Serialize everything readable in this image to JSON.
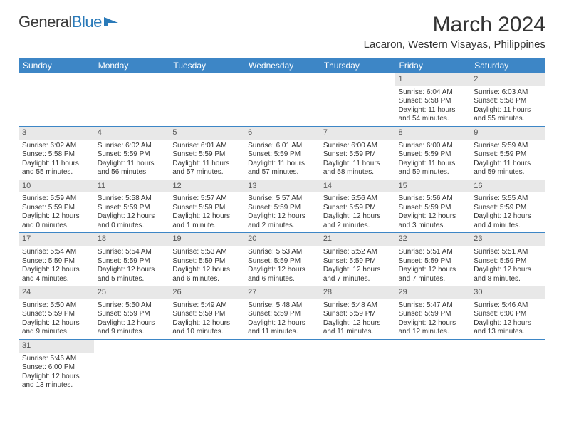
{
  "brand": {
    "part1": "General",
    "part2": "Blue"
  },
  "title": "March 2024",
  "location": "Lacaron, Western Visayas, Philippines",
  "style": {
    "header_bg": "#3d86c6",
    "header_fg": "#ffffff",
    "daynum_bg": "#e8e8e8",
    "row_border": "#3d86c6",
    "page_bg": "#ffffff",
    "text_color": "#333333",
    "title_fontsize": 30,
    "location_fontsize": 15,
    "dayheader_fontsize": 12,
    "cell_fontsize": 10
  },
  "calendar": {
    "columns": [
      "Sunday",
      "Monday",
      "Tuesday",
      "Wednesday",
      "Thursday",
      "Friday",
      "Saturday"
    ],
    "weeks": [
      [
        null,
        null,
        null,
        null,
        null,
        {
          "n": "1",
          "sr": "Sunrise: 6:04 AM",
          "ss": "Sunset: 5:58 PM",
          "dl": "Daylight: 11 hours and 54 minutes."
        },
        {
          "n": "2",
          "sr": "Sunrise: 6:03 AM",
          "ss": "Sunset: 5:58 PM",
          "dl": "Daylight: 11 hours and 55 minutes."
        }
      ],
      [
        {
          "n": "3",
          "sr": "Sunrise: 6:02 AM",
          "ss": "Sunset: 5:58 PM",
          "dl": "Daylight: 11 hours and 55 minutes."
        },
        {
          "n": "4",
          "sr": "Sunrise: 6:02 AM",
          "ss": "Sunset: 5:59 PM",
          "dl": "Daylight: 11 hours and 56 minutes."
        },
        {
          "n": "5",
          "sr": "Sunrise: 6:01 AM",
          "ss": "Sunset: 5:59 PM",
          "dl": "Daylight: 11 hours and 57 minutes."
        },
        {
          "n": "6",
          "sr": "Sunrise: 6:01 AM",
          "ss": "Sunset: 5:59 PM",
          "dl": "Daylight: 11 hours and 57 minutes."
        },
        {
          "n": "7",
          "sr": "Sunrise: 6:00 AM",
          "ss": "Sunset: 5:59 PM",
          "dl": "Daylight: 11 hours and 58 minutes."
        },
        {
          "n": "8",
          "sr": "Sunrise: 6:00 AM",
          "ss": "Sunset: 5:59 PM",
          "dl": "Daylight: 11 hours and 59 minutes."
        },
        {
          "n": "9",
          "sr": "Sunrise: 5:59 AM",
          "ss": "Sunset: 5:59 PM",
          "dl": "Daylight: 11 hours and 59 minutes."
        }
      ],
      [
        {
          "n": "10",
          "sr": "Sunrise: 5:59 AM",
          "ss": "Sunset: 5:59 PM",
          "dl": "Daylight: 12 hours and 0 minutes."
        },
        {
          "n": "11",
          "sr": "Sunrise: 5:58 AM",
          "ss": "Sunset: 5:59 PM",
          "dl": "Daylight: 12 hours and 0 minutes."
        },
        {
          "n": "12",
          "sr": "Sunrise: 5:57 AM",
          "ss": "Sunset: 5:59 PM",
          "dl": "Daylight: 12 hours and 1 minute."
        },
        {
          "n": "13",
          "sr": "Sunrise: 5:57 AM",
          "ss": "Sunset: 5:59 PM",
          "dl": "Daylight: 12 hours and 2 minutes."
        },
        {
          "n": "14",
          "sr": "Sunrise: 5:56 AM",
          "ss": "Sunset: 5:59 PM",
          "dl": "Daylight: 12 hours and 2 minutes."
        },
        {
          "n": "15",
          "sr": "Sunrise: 5:56 AM",
          "ss": "Sunset: 5:59 PM",
          "dl": "Daylight: 12 hours and 3 minutes."
        },
        {
          "n": "16",
          "sr": "Sunrise: 5:55 AM",
          "ss": "Sunset: 5:59 PM",
          "dl": "Daylight: 12 hours and 4 minutes."
        }
      ],
      [
        {
          "n": "17",
          "sr": "Sunrise: 5:54 AM",
          "ss": "Sunset: 5:59 PM",
          "dl": "Daylight: 12 hours and 4 minutes."
        },
        {
          "n": "18",
          "sr": "Sunrise: 5:54 AM",
          "ss": "Sunset: 5:59 PM",
          "dl": "Daylight: 12 hours and 5 minutes."
        },
        {
          "n": "19",
          "sr": "Sunrise: 5:53 AM",
          "ss": "Sunset: 5:59 PM",
          "dl": "Daylight: 12 hours and 6 minutes."
        },
        {
          "n": "20",
          "sr": "Sunrise: 5:53 AM",
          "ss": "Sunset: 5:59 PM",
          "dl": "Daylight: 12 hours and 6 minutes."
        },
        {
          "n": "21",
          "sr": "Sunrise: 5:52 AM",
          "ss": "Sunset: 5:59 PM",
          "dl": "Daylight: 12 hours and 7 minutes."
        },
        {
          "n": "22",
          "sr": "Sunrise: 5:51 AM",
          "ss": "Sunset: 5:59 PM",
          "dl": "Daylight: 12 hours and 7 minutes."
        },
        {
          "n": "23",
          "sr": "Sunrise: 5:51 AM",
          "ss": "Sunset: 5:59 PM",
          "dl": "Daylight: 12 hours and 8 minutes."
        }
      ],
      [
        {
          "n": "24",
          "sr": "Sunrise: 5:50 AM",
          "ss": "Sunset: 5:59 PM",
          "dl": "Daylight: 12 hours and 9 minutes."
        },
        {
          "n": "25",
          "sr": "Sunrise: 5:50 AM",
          "ss": "Sunset: 5:59 PM",
          "dl": "Daylight: 12 hours and 9 minutes."
        },
        {
          "n": "26",
          "sr": "Sunrise: 5:49 AM",
          "ss": "Sunset: 5:59 PM",
          "dl": "Daylight: 12 hours and 10 minutes."
        },
        {
          "n": "27",
          "sr": "Sunrise: 5:48 AM",
          "ss": "Sunset: 5:59 PM",
          "dl": "Daylight: 12 hours and 11 minutes."
        },
        {
          "n": "28",
          "sr": "Sunrise: 5:48 AM",
          "ss": "Sunset: 5:59 PM",
          "dl": "Daylight: 12 hours and 11 minutes."
        },
        {
          "n": "29",
          "sr": "Sunrise: 5:47 AM",
          "ss": "Sunset: 5:59 PM",
          "dl": "Daylight: 12 hours and 12 minutes."
        },
        {
          "n": "30",
          "sr": "Sunrise: 5:46 AM",
          "ss": "Sunset: 6:00 PM",
          "dl": "Daylight: 12 hours and 13 minutes."
        }
      ],
      [
        {
          "n": "31",
          "sr": "Sunrise: 5:46 AM",
          "ss": "Sunset: 6:00 PM",
          "dl": "Daylight: 12 hours and 13 minutes."
        },
        null,
        null,
        null,
        null,
        null,
        null
      ]
    ]
  }
}
